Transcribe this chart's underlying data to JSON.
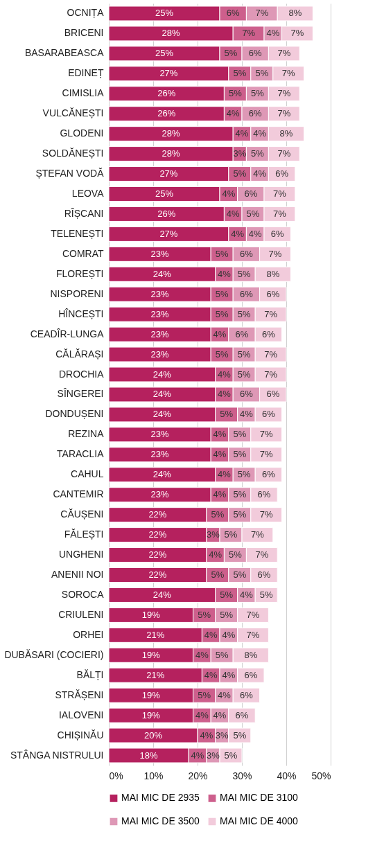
{
  "chart_data": {
    "type": "bar",
    "orientation": "horizontal",
    "stacked": true,
    "categories": [
      "OCNIȚA",
      "BRICENI",
      "BASARABEASCA",
      "EDINEȚ",
      "CIMISLIA",
      "VULCĂNEȘTI",
      "GLODENI",
      "SOLDĂNEȘTI",
      "ȘTEFAN VODĂ",
      "LEOVA",
      "RÎȘCANI",
      "TELENEȘTI",
      "COMRAT",
      "FLOREȘTI",
      "NISPORENI",
      "HÎNCEȘTI",
      "CEADÎR-LUNGA",
      "CĂLĂRAȘI",
      "DROCHIA",
      "SÎNGEREI",
      "DONDUȘENI",
      "REZINA",
      "TARACLIA",
      "CAHUL",
      "CANTEMIR",
      "CĂUȘENI",
      "FĂLEȘTI",
      "UNGHENI",
      "ANENII NOI",
      "SOROCA",
      "CRIULENI",
      "ORHEI",
      "DUBĂSARI (COCIERI)",
      "BĂLȚI",
      "STRĂȘENI",
      "IALOVENI",
      "CHIȘINĂU",
      "STÂNGA NISTRULUI"
    ],
    "series": [
      {
        "name": "MAI MIC DE 2935",
        "color": "#b5215e",
        "values": [
          25,
          28,
          25,
          27,
          26,
          26,
          28,
          28,
          27,
          25,
          26,
          27,
          23,
          24,
          23,
          23,
          23,
          23,
          24,
          24,
          24,
          23,
          23,
          24,
          23,
          22,
          22,
          22,
          22,
          24,
          19,
          21,
          19,
          21,
          19,
          19,
          20,
          18
        ],
        "value_labels": [
          "25%",
          "28%",
          "25%",
          "27%",
          "26%",
          "26%",
          "28%",
          "28%",
          "27%",
          "25%",
          "26%",
          "27%",
          "23%",
          "24%",
          "23%",
          "23%",
          "23%",
          "23%",
          "24%",
          "24%",
          "24%",
          "23%",
          "23%",
          "24%",
          "23%",
          "22%",
          "22%",
          "22%",
          "22%",
          "24%",
          "19%",
          "21%",
          "19%",
          "21%",
          "19%",
          "19%",
          "20%",
          "18%"
        ]
      },
      {
        "name": "MAI MIC DE 3100",
        "color": "#cd5f8c",
        "values": [
          6,
          7,
          5,
          5,
          5,
          4,
          4,
          3,
          5,
          4,
          4,
          4,
          5,
          4,
          5,
          5,
          4,
          5,
          4,
          4,
          5,
          4,
          4,
          4,
          4,
          5,
          3,
          4,
          5,
          5,
          5,
          4,
          4,
          4,
          5,
          4,
          4,
          4
        ],
        "value_labels": [
          "6%",
          "7%",
          "5%",
          "5%",
          "5%",
          "4%",
          "4%",
          "3%",
          "5%",
          "4%",
          "4%",
          "4%",
          "5%",
          "4%",
          "5%",
          "5%",
          "4%",
          "5%",
          "4%",
          "4%",
          "5%",
          "4%",
          "4%",
          "4%",
          "4%",
          "5%",
          "3%",
          "4%",
          "5%",
          "5%",
          "5%",
          "4%",
          "4%",
          "4%",
          "5%",
          "4%",
          "4%",
          "4%"
        ]
      },
      {
        "name": "MAI MIC DE 3500",
        "color": "#de98b6",
        "values": [
          7,
          4,
          6,
          5,
          5,
          6,
          4,
          5,
          4,
          6,
          5,
          4,
          6,
          5,
          6,
          5,
          6,
          5,
          5,
          6,
          4,
          5,
          5,
          5,
          5,
          5,
          5,
          5,
          5,
          4,
          5,
          4,
          5,
          4,
          4,
          4,
          3,
          3
        ],
        "value_labels": [
          "7%",
          "4%",
          "6%",
          "5%",
          "5%",
          "6%",
          "4%",
          "5%",
          "4%",
          "6%",
          "5%",
          "4%",
          "6%",
          "5%",
          "6%",
          "5%",
          "6%",
          "5%",
          "5%",
          "6%",
          "4%",
          "5%",
          "5%",
          "5%",
          "5%",
          "5%",
          "5%",
          "5%",
          "5%",
          "4%",
          "5%",
          "4%",
          "5%",
          "4%",
          "4%",
          "4%",
          "3%",
          "3%"
        ]
      },
      {
        "name": "MAI MIC DE 4000",
        "color": "#f2cbdb",
        "values": [
          8,
          7,
          7,
          7,
          7,
          7,
          8,
          7,
          6,
          7,
          7,
          6,
          7,
          8,
          6,
          7,
          6,
          7,
          7,
          6,
          6,
          7,
          7,
          6,
          6,
          7,
          7,
          7,
          6,
          5,
          7,
          7,
          8,
          6,
          6,
          6,
          5,
          5
        ],
        "value_labels": [
          "8%",
          "7%",
          "7%",
          "7%",
          "7%",
          "7%",
          "8%",
          "7%",
          "6%",
          "7%",
          "7%",
          "6%",
          "7%",
          "8%",
          "6%",
          "7%",
          "6%",
          "7%",
          "7%",
          "6%",
          "6%",
          "7%",
          "7%",
          "6%",
          "6%",
          "7%",
          "7%",
          "7%",
          "6%",
          "5%",
          "7%",
          "7%",
          "8%",
          "6%",
          "6%",
          "6%",
          "5%",
          "5%"
        ]
      }
    ],
    "xlim": [
      0,
      50
    ],
    "xticks": [
      {
        "value": 0,
        "label": "0%"
      },
      {
        "value": 10,
        "label": "10%"
      },
      {
        "value": 20,
        "label": "20%"
      },
      {
        "value": 30,
        "label": "30%"
      },
      {
        "value": 40,
        "label": "40%"
      },
      {
        "value": 50,
        "label": "50%"
      }
    ],
    "grid": "x",
    "legend": "bottom"
  }
}
